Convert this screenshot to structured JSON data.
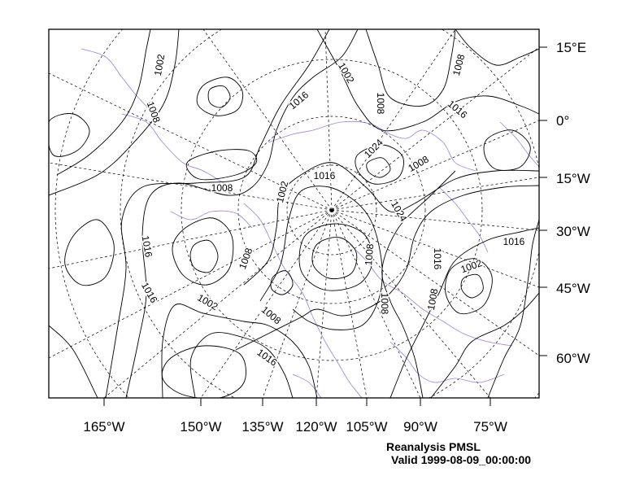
{
  "map": {
    "colors": {
      "contour": "#000000",
      "coastline": "#9d86cf",
      "grid": "#000000",
      "frame": "#000000"
    },
    "bottom_axis_labels": [
      "165°W",
      "150°W",
      "135°W",
      "120°W",
      "105°W",
      "90°W",
      "75°W"
    ],
    "right_axis_labels": [
      "15°E",
      "0°",
      "15°W",
      "30°W",
      "45°W",
      "60°W"
    ],
    "contour_labels": [
      "1002",
      "1008",
      "1016",
      "1002",
      "1008",
      "1008",
      "1016",
      "1024",
      "1008",
      "1008",
      "1016",
      "1002",
      "1024",
      "1016",
      "1008",
      "1016",
      "1008",
      "1002",
      "1008",
      "1016",
      "1008",
      "1002",
      "1016",
      "1008",
      "1016"
    ]
  },
  "caption": {
    "title": "Reanalysis PMSL",
    "valid": "Valid 1999-08-09_00:00:00"
  }
}
